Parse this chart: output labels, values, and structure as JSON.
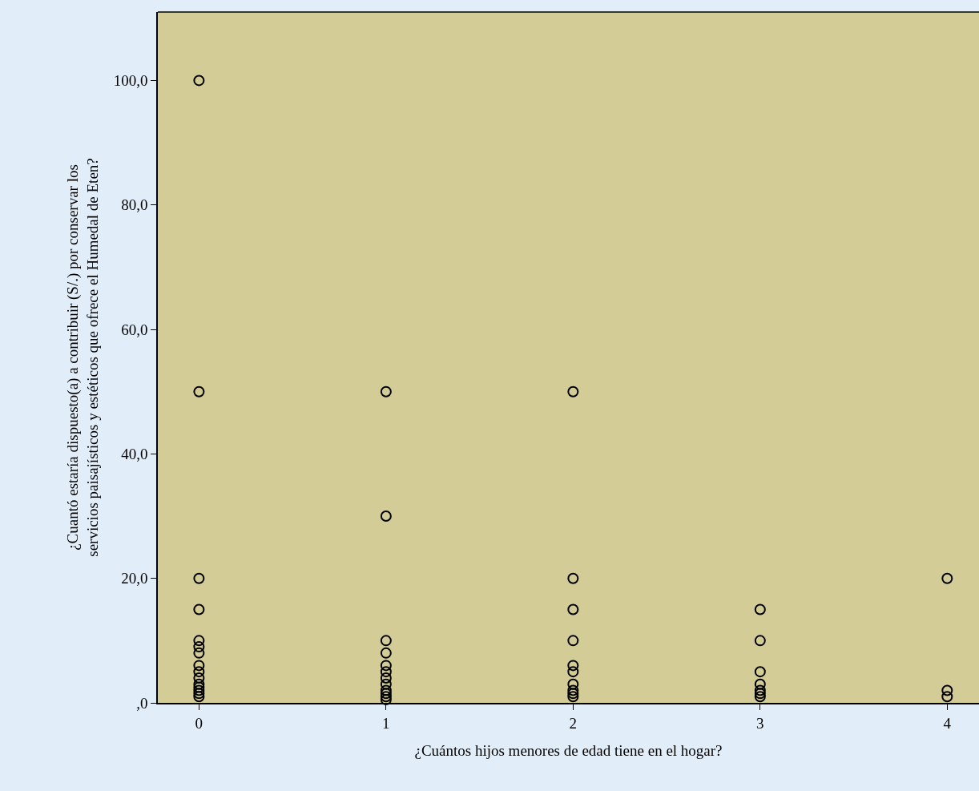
{
  "chart_data": {
    "type": "scatter",
    "xlabel": "¿Cuántos hijos menores de edad tiene en el hogar?",
    "ylabel": "¿Cuantó estaría dispuesto(a) a contribuir (S/.) por conservar los\nservicios paisajísticos y estéticos que ofrece el Humedal de Eten?",
    "x": [
      0,
      0,
      0,
      0,
      0,
      0,
      0,
      0,
      0,
      0,
      0,
      0,
      0,
      0,
      0,
      1,
      1,
      1,
      1,
      1,
      1,
      1,
      1,
      1,
      1,
      1,
      1,
      2,
      2,
      2,
      2,
      2,
      2,
      2,
      2,
      2,
      2,
      3,
      3,
      3,
      3,
      3,
      3,
      3,
      4,
      4,
      4
    ],
    "values": [
      100,
      50,
      20,
      15,
      10,
      9,
      8,
      6,
      5,
      4,
      3,
      2.5,
      2,
      1.5,
      1,
      50,
      30,
      10,
      8,
      6,
      5,
      4,
      3,
      2,
      1.5,
      1,
      0.5,
      50,
      20,
      15,
      10,
      6,
      5,
      3,
      2,
      1.5,
      1,
      15,
      10,
      5,
      3,
      2,
      1.5,
      1,
      20,
      2,
      1
    ],
    "color": "#000000",
    "marker": "circle",
    "grid": false,
    "xlim": [
      -0.22,
      4.17
    ],
    "xticks": [
      0,
      1,
      2,
      3,
      4
    ],
    "ylim": [
      0,
      111
    ],
    "yticks": [
      {
        "value": 0,
        "label": ",0"
      },
      {
        "value": 20,
        "label": "20,0"
      },
      {
        "value": 40,
        "label": "40,0"
      },
      {
        "value": 60,
        "label": "60,0"
      },
      {
        "value": 80,
        "label": "80,0"
      },
      {
        "value": 100,
        "label": "100,0"
      }
    ]
  }
}
